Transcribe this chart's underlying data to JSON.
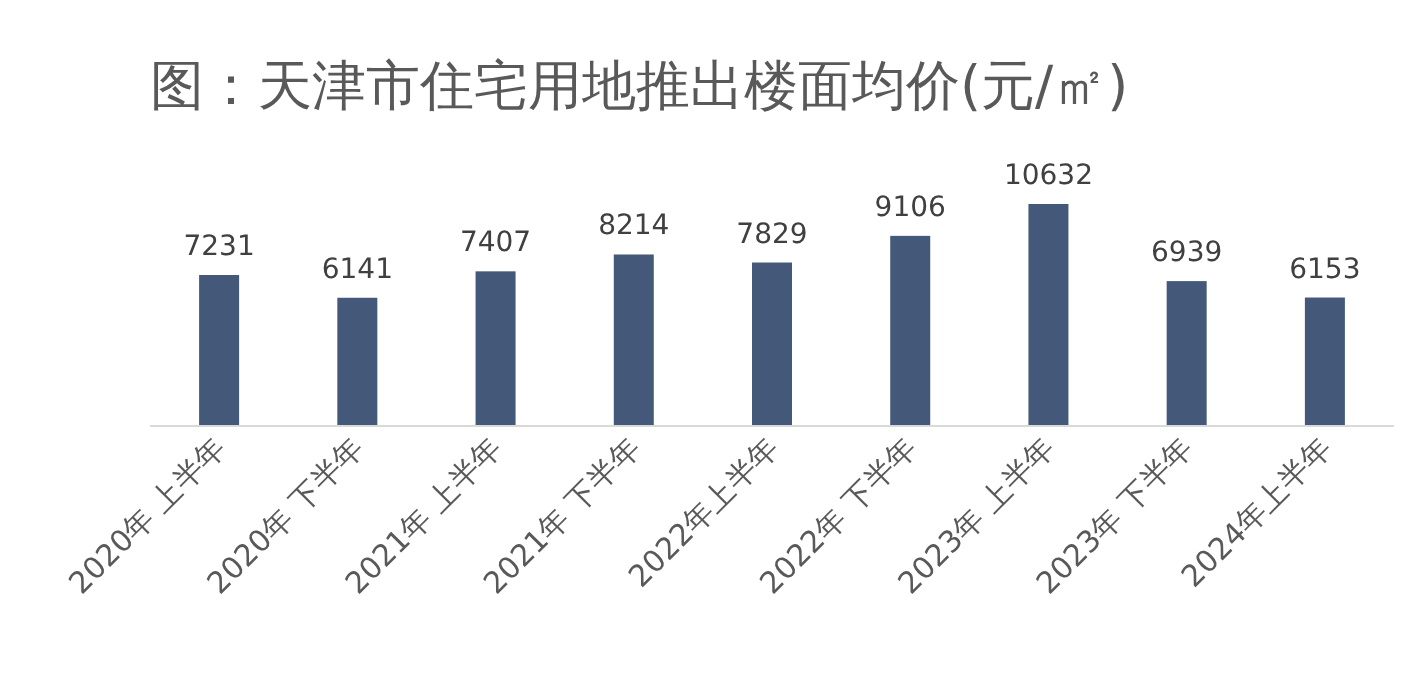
{
  "chart_data": {
    "type": "bar",
    "title": "图：天津市住宅用地推出楼面均价(元/㎡)",
    "categories": [
      "2020年 上半年",
      "2020年 下半年",
      "2021年 上半年",
      "2021年 下半年",
      "2022年上半年",
      "2022年 下半年",
      "2023年 上半年",
      "2023年 下半年",
      "2024年上半年"
    ],
    "values": [
      7231,
      6141,
      7407,
      8214,
      7829,
      9106,
      10632,
      6939,
      6153
    ],
    "color": "#44587a",
    "data_labels": true
  }
}
